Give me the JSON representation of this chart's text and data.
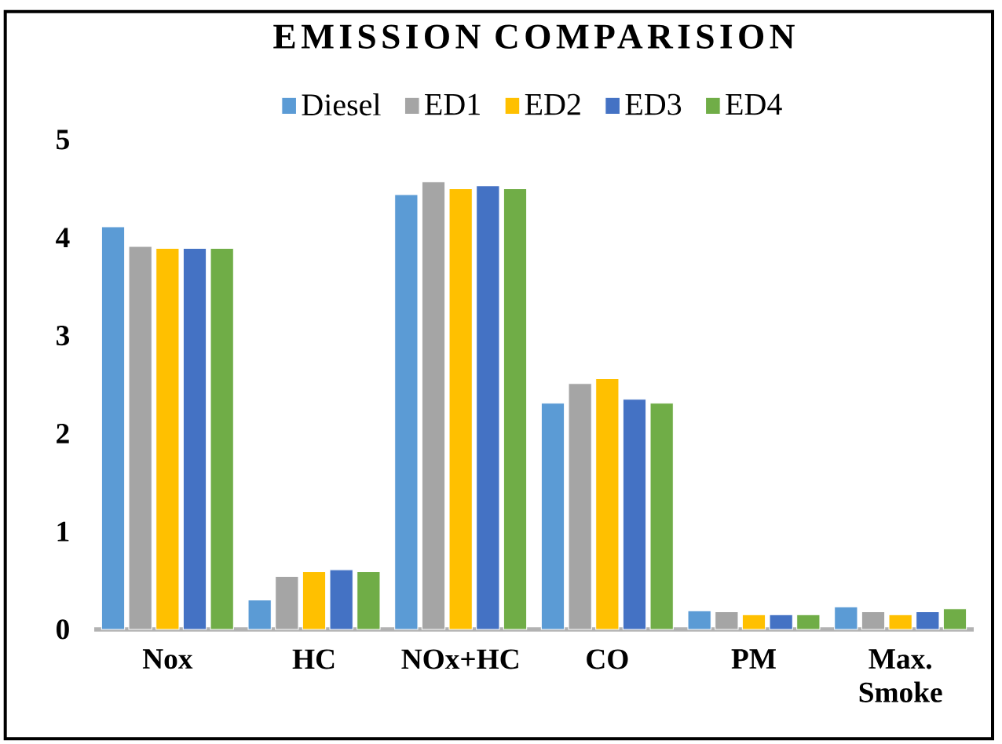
{
  "chart_data": {
    "type": "bar",
    "title": "EMISSION COMPARISION",
    "categories": [
      "Nox",
      "HC",
      "NOx+HC",
      "CO",
      "PM",
      "Max. Smoke"
    ],
    "series": [
      {
        "name": "Diesel",
        "color": "#5b9bd5",
        "values": [
          4.11,
          0.3,
          4.44,
          2.31,
          0.19,
          0.23
        ]
      },
      {
        "name": "ED1",
        "color": "#a5a5a5",
        "values": [
          3.91,
          0.54,
          4.57,
          2.51,
          0.18,
          0.18
        ]
      },
      {
        "name": "ED2",
        "color": "#ffc000",
        "values": [
          3.89,
          0.59,
          4.5,
          2.56,
          0.15,
          0.15
        ]
      },
      {
        "name": "ED3",
        "color": "#4472c4",
        "values": [
          3.89,
          0.61,
          4.53,
          2.35,
          0.15,
          0.18
        ]
      },
      {
        "name": "ED4",
        "color": "#70ad47",
        "values": [
          3.89,
          0.59,
          4.5,
          2.31,
          0.15,
          0.21
        ]
      }
    ],
    "ylim": [
      0,
      5
    ],
    "yticks": [
      0,
      1,
      2,
      3,
      4,
      5
    ],
    "legend": "top"
  }
}
